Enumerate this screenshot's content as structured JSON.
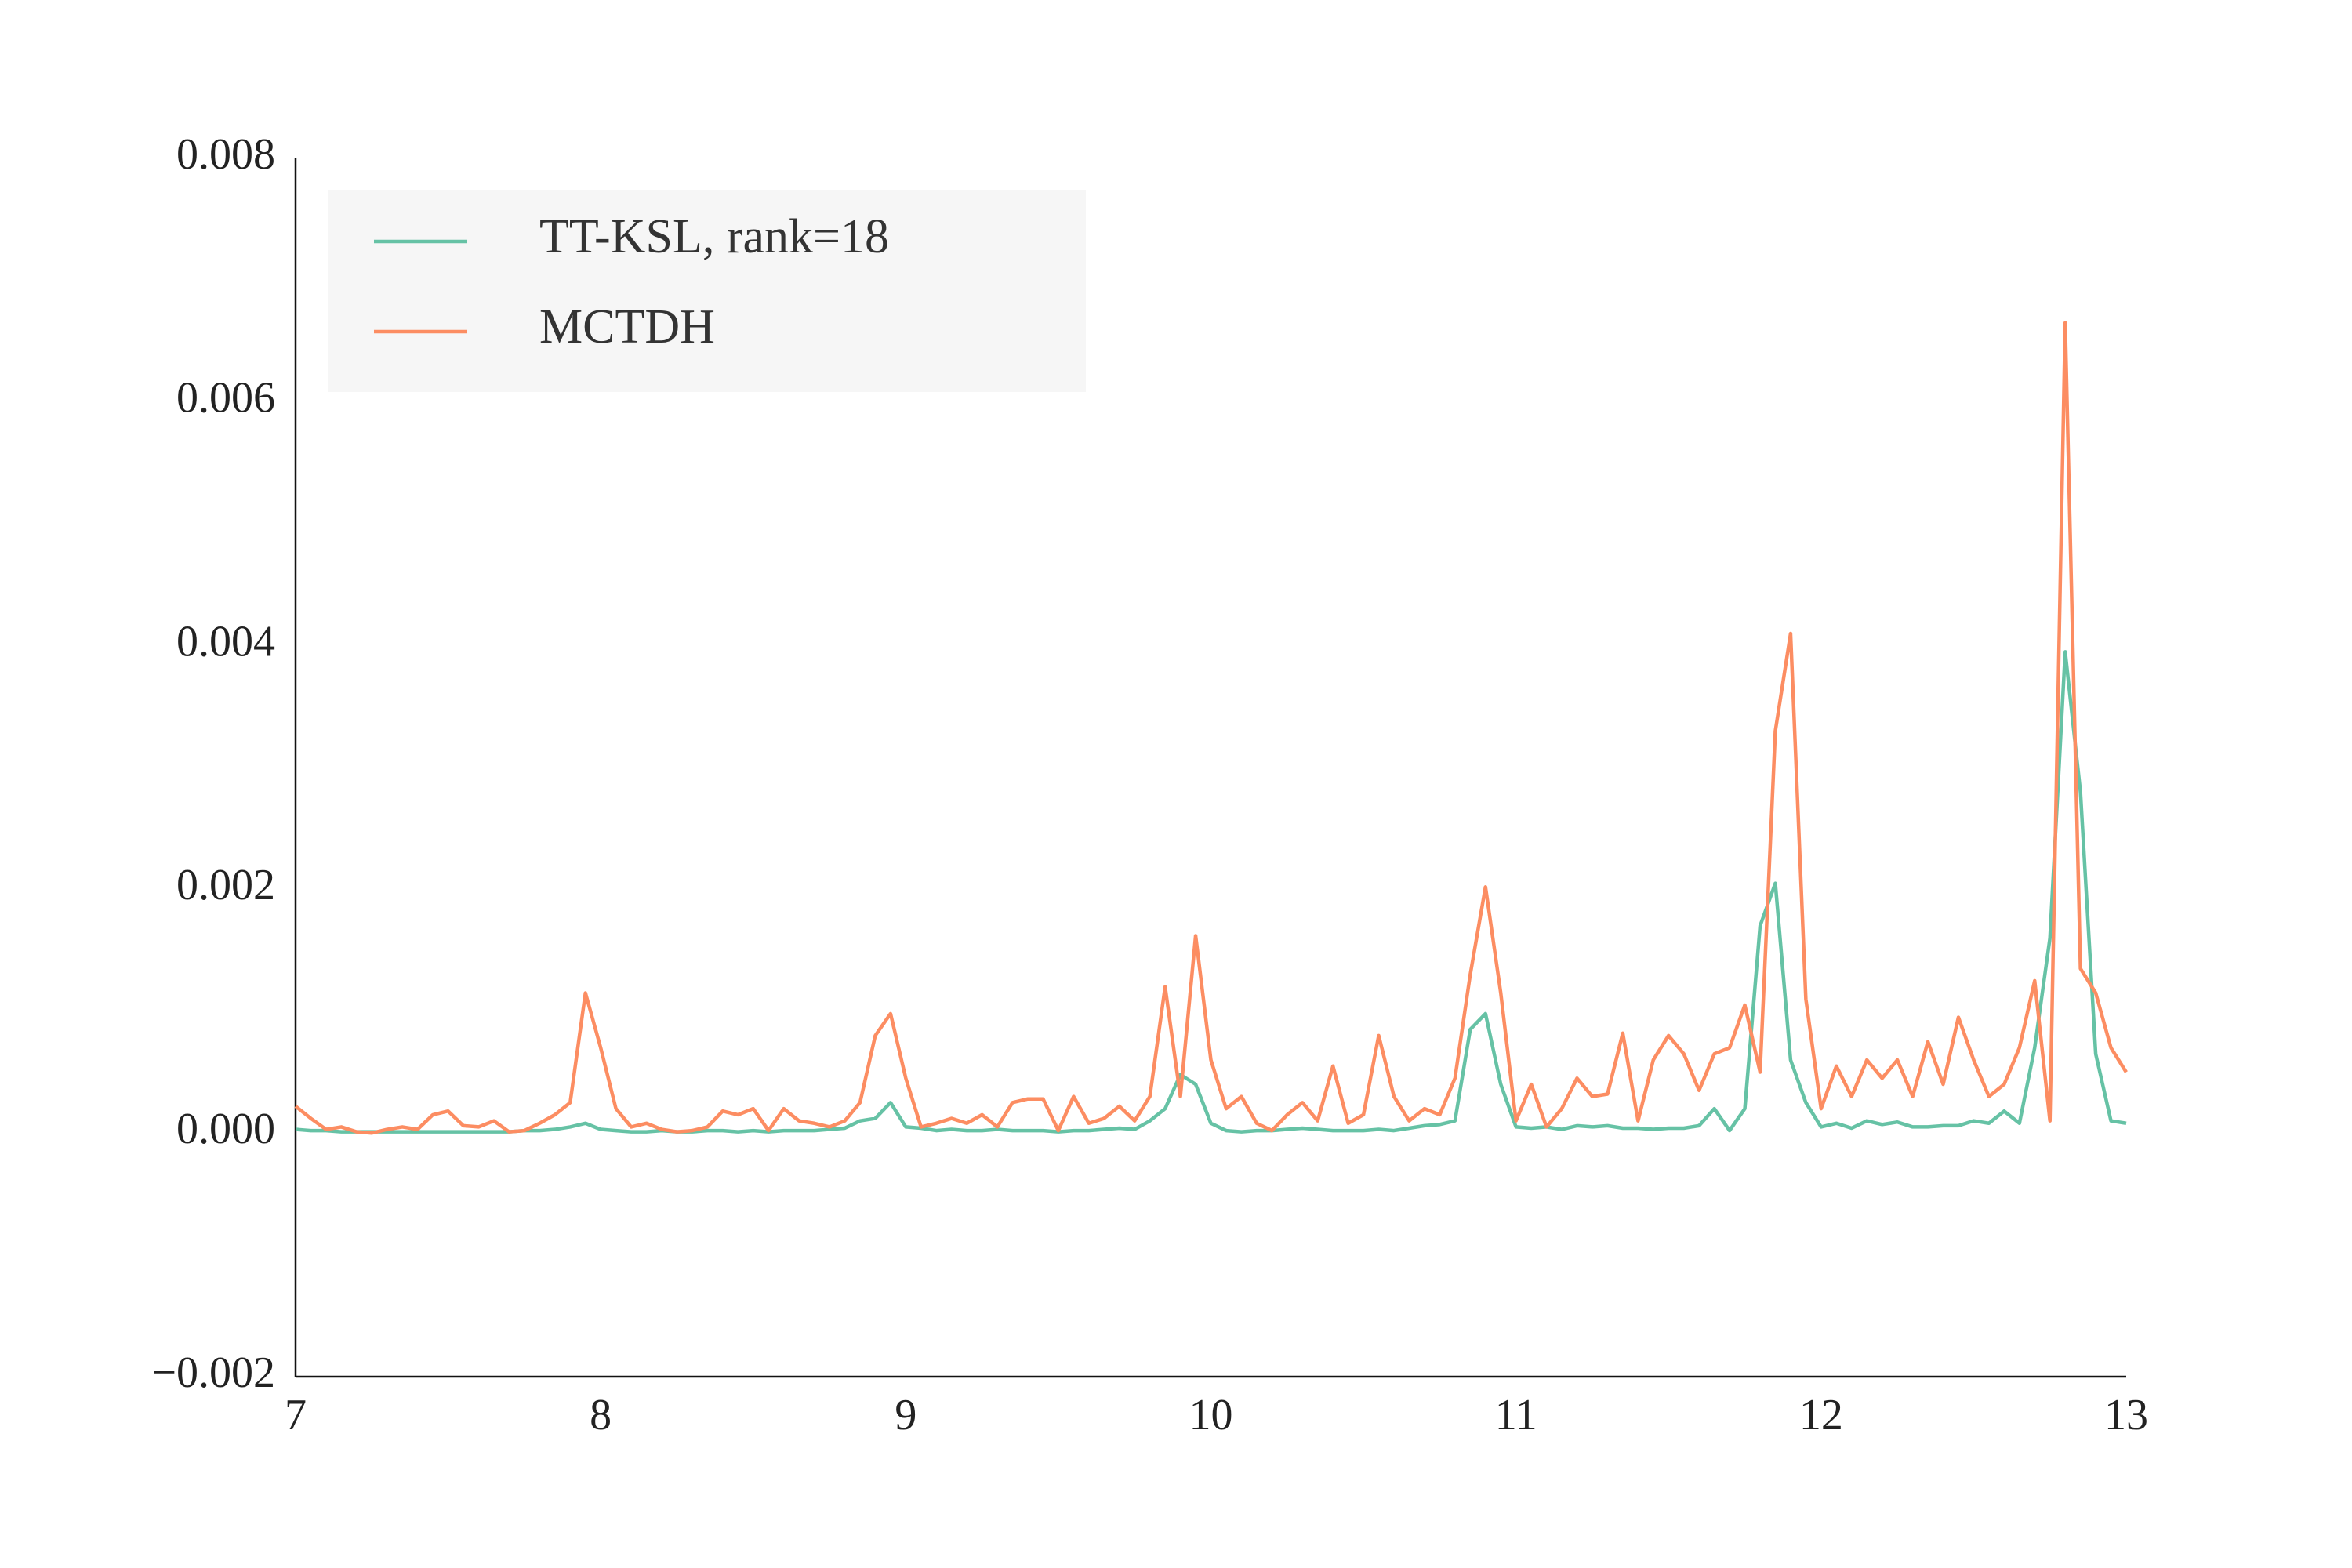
{
  "chart_data": {
    "type": "line",
    "x": [
      7,
      7.05,
      7.1,
      7.15,
      7.2,
      7.25,
      7.3,
      7.35,
      7.4,
      7.45,
      7.5,
      7.55,
      7.6,
      7.65,
      7.7,
      7.75,
      7.8,
      7.85,
      7.9,
      7.95,
      8,
      8.05,
      8.1,
      8.15,
      8.2,
      8.25,
      8.3,
      8.35,
      8.4,
      8.45,
      8.5,
      8.55,
      8.6,
      8.65,
      8.7,
      8.75,
      8.8,
      8.85,
      8.9,
      8.95,
      9,
      9.05,
      9.1,
      9.15,
      9.2,
      9.25,
      9.3,
      9.35,
      9.4,
      9.45,
      9.5,
      9.55,
      9.6,
      9.65,
      9.7,
      9.75,
      9.8,
      9.85,
      9.9,
      9.95,
      10,
      10.05,
      10.1,
      10.15,
      10.2,
      10.25,
      10.3,
      10.35,
      10.4,
      10.45,
      10.5,
      10.55,
      10.6,
      10.65,
      10.7,
      10.75,
      10.8,
      10.85,
      10.9,
      10.95,
      11,
      11.05,
      11.1,
      11.15,
      11.2,
      11.25,
      11.3,
      11.35,
      11.4,
      11.45,
      11.5,
      11.55,
      11.6,
      11.65,
      11.7,
      11.75,
      11.8,
      11.85,
      11.9,
      11.95,
      12,
      12.05,
      12.1,
      12.15,
      12.2,
      12.25,
      12.3,
      12.35,
      12.4,
      12.45,
      12.5,
      12.55,
      12.6,
      12.65,
      12.7,
      12.75,
      12.8,
      12.85,
      12.9,
      12.95,
      13
    ],
    "series": [
      {
        "name": "TT-KSL, rank=18",
        "color": "#66c2a5",
        "values": [
          3e-05,
          2e-05,
          2e-05,
          1e-05,
          1e-05,
          1e-05,
          1e-05,
          1e-05,
          1e-05,
          1e-05,
          1e-05,
          1e-05,
          1e-05,
          1e-05,
          1e-05,
          2e-05,
          2e-05,
          3e-05,
          5e-05,
          8e-05,
          3e-05,
          2e-05,
          1e-05,
          1e-05,
          2e-05,
          1e-05,
          1e-05,
          2e-05,
          2e-05,
          1e-05,
          2e-05,
          1e-05,
          2e-05,
          2e-05,
          2e-05,
          3e-05,
          4e-05,
          0.0001,
          0.00012,
          0.00025,
          5e-05,
          4e-05,
          2e-05,
          3e-05,
          2e-05,
          2e-05,
          3e-05,
          2e-05,
          2e-05,
          2e-05,
          1e-05,
          2e-05,
          2e-05,
          3e-05,
          4e-05,
          3e-05,
          0.0001,
          0.0002,
          0.00048,
          0.0004,
          8e-05,
          2e-05,
          1e-05,
          2e-05,
          2e-05,
          3e-05,
          4e-05,
          3e-05,
          2e-05,
          2e-05,
          2e-05,
          3e-05,
          2e-05,
          4e-05,
          6e-05,
          7e-05,
          0.0001,
          0.00085,
          0.00098,
          0.0004,
          5e-05,
          4e-05,
          5e-05,
          3e-05,
          6e-05,
          5e-05,
          6e-05,
          4e-05,
          4e-05,
          3e-05,
          4e-05,
          4e-05,
          6e-05,
          0.0002,
          2e-05,
          0.0002,
          0.0017,
          0.00205,
          0.0006,
          0.00025,
          5e-05,
          8e-05,
          4e-05,
          0.0001,
          7e-05,
          9e-05,
          5e-05,
          5e-05,
          6e-05,
          6e-05,
          0.0001,
          8e-05,
          0.00018,
          8e-05,
          0.0007,
          0.0016,
          0.00395,
          0.0028,
          0.00065,
          0.0001,
          8e-05
        ]
      },
      {
        "name": "MCTDH",
        "color": "#fc8d62",
        "values": [
          0.00022,
          0.00012,
          3e-05,
          5e-05,
          1e-05,
          0,
          3e-05,
          5e-05,
          3e-05,
          0.00015,
          0.00018,
          6e-05,
          5e-05,
          0.0001,
          1e-05,
          2e-05,
          8e-05,
          0.00015,
          0.00025,
          0.00115,
          0.0007,
          0.0002,
          5e-05,
          8e-05,
          3e-05,
          1e-05,
          2e-05,
          5e-05,
          0.00018,
          0.00015,
          0.0002,
          2e-05,
          0.0002,
          0.0001,
          8e-05,
          5e-05,
          0.0001,
          0.00025,
          0.0008,
          0.00098,
          0.00045,
          5e-05,
          8e-05,
          0.00012,
          8e-05,
          0.00015,
          5e-05,
          0.00025,
          0.00028,
          0.00028,
          2e-05,
          0.0003,
          8e-05,
          0.00012,
          0.00022,
          0.0001,
          0.0003,
          0.0012,
          0.0003,
          0.00162,
          0.0006,
          0.0002,
          0.0003,
          8e-05,
          2e-05,
          0.00015,
          0.00025,
          0.0001,
          0.00055,
          8e-05,
          0.00015,
          0.0008,
          0.0003,
          0.0001,
          0.0002,
          0.00015,
          0.00045,
          0.0013,
          0.00202,
          0.00115,
          0.0001,
          0.0004,
          5e-05,
          0.0002,
          0.00045,
          0.0003,
          0.00032,
          0.00082,
          0.0001,
          0.0006,
          0.0008,
          0.00065,
          0.00035,
          0.00065,
          0.0007,
          0.00105,
          0.0005,
          0.0033,
          0.0041,
          0.0011,
          0.0002,
          0.00055,
          0.0003,
          0.0006,
          0.00045,
          0.0006,
          0.0003,
          0.00075,
          0.0004,
          0.00095,
          0.0006,
          0.0003,
          0.0004,
          0.0007,
          0.00125,
          0.0001,
          0.00665,
          0.00135,
          0.00115,
          0.0007,
          0.0005
        ]
      }
    ],
    "xlim": [
      7,
      13
    ],
    "ylim": [
      -0.002,
      0.008
    ],
    "xticks": [
      7,
      8,
      9,
      10,
      11,
      12,
      13
    ],
    "yticks": [
      {
        "value": -0.002,
        "label": "−0.002"
      },
      {
        "value": 0,
        "label": "0.000"
      },
      0.002,
      0.004,
      0.006,
      0.008
    ],
    "legend": "upper left",
    "grid": false
  }
}
